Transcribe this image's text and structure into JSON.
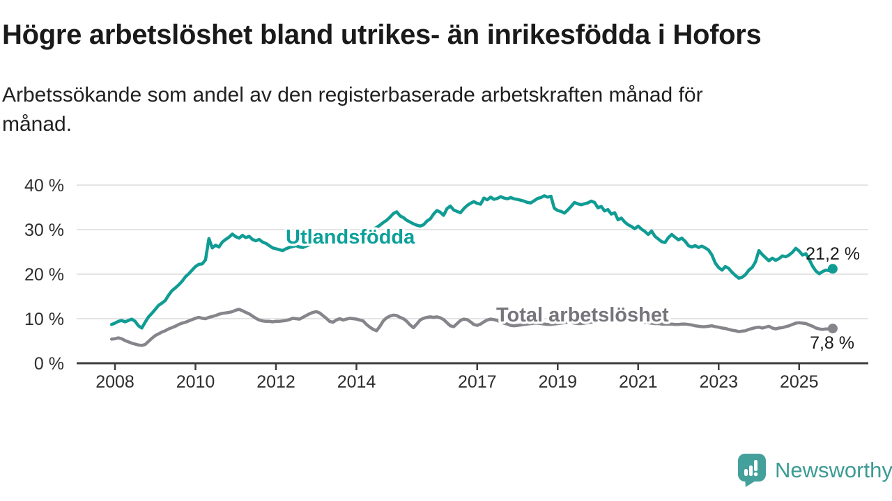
{
  "header": {
    "title": "Högre arbetslöshet bland utrikes- än inrikesfödda i Hofors",
    "subtitle_lines": [
      "Arbetssökande som andel av den registerbaserade arbetskraften månad för",
      "månad."
    ]
  },
  "chart_data": {
    "type": "line",
    "title": "Högre arbetslöshet bland utrikes- än inrikesfödda i Hofors",
    "subtitle": "Arbetssökande som andel av den registerbaserade arbetskraften månad för månad.",
    "grid": "horizontal-only",
    "legend_position": "inline-labels",
    "x_axis": {
      "range_years": [
        2007.75,
        2026.75
      ],
      "ticks": [
        {
          "year": 2008,
          "label": "2008"
        },
        {
          "year": 2010,
          "label": "2010"
        },
        {
          "year": 2012,
          "label": "2012"
        },
        {
          "year": 2014,
          "label": "2014"
        },
        {
          "year": 2017,
          "label": "2017"
        },
        {
          "year": 2019,
          "label": "2019"
        },
        {
          "year": 2021,
          "label": "2021"
        },
        {
          "year": 2023,
          "label": "2023"
        },
        {
          "year": 2025,
          "label": "2025"
        }
      ]
    },
    "y_axis": {
      "unit": "%",
      "range": [
        0,
        42
      ],
      "ticks": [
        {
          "value": 0,
          "label": "0 %"
        },
        {
          "value": 10,
          "label": "10 %"
        },
        {
          "value": 20,
          "label": "20 %"
        },
        {
          "value": 30,
          "label": "30 %"
        },
        {
          "value": 40,
          "label": "40 %"
        }
      ]
    },
    "series": [
      {
        "id": "utlandsfodda",
        "label": "Utlandsfödda",
        "color": "#109c94",
        "label_color": "#0ca09a",
        "end_value": 21.2,
        "end_label": "21,2 %",
        "start_year": 2007.9167,
        "step_years": 0.083333,
        "values": [
          8.7,
          9.0,
          9.4,
          9.6,
          9.3,
          9.6,
          9.9,
          9.4,
          8.4,
          7.9,
          9.2,
          10.4,
          11.2,
          12.1,
          13.0,
          13.5,
          14.1,
          15.3,
          16.3,
          16.9,
          17.6,
          18.4,
          19.4,
          20.1,
          20.9,
          21.7,
          22.2,
          22.3,
          23.2,
          28.0,
          25.9,
          26.5,
          26.1,
          27.2,
          27.8,
          28.3,
          29.0,
          28.4,
          28.1,
          28.7,
          28.2,
          28.5,
          27.8,
          27.5,
          27.8,
          27.2,
          26.9,
          26.4,
          25.9,
          25.7,
          25.5,
          25.3,
          25.7,
          26.0,
          26.2,
          26.4,
          26.1,
          26.0,
          26.3,
          26.6,
          26.8,
          27.0,
          26.8,
          27.1,
          27.3,
          27.1,
          27.4,
          27.2,
          27.6,
          27.9,
          28.1,
          28.0,
          28.2,
          28.0,
          28.4,
          28.7,
          29.1,
          29.6,
          30.1,
          30.5,
          31.0,
          31.6,
          32.1,
          32.8,
          33.6,
          34.0,
          33.1,
          32.7,
          32.1,
          31.7,
          31.3,
          31.0,
          30.8,
          31.1,
          31.9,
          32.4,
          33.5,
          34.3,
          33.9,
          33.2,
          34.7,
          35.3,
          34.4,
          34.1,
          33.8,
          34.7,
          35.4,
          35.9,
          36.3,
          35.9,
          35.7,
          37.1,
          36.7,
          37.3,
          36.8,
          37.0,
          37.4,
          37.1,
          36.9,
          37.2,
          36.9,
          36.8,
          36.6,
          36.4,
          36.1,
          36.0,
          36.5,
          37.0,
          37.2,
          37.6,
          37.3,
          37.5,
          34.8,
          34.3,
          34.1,
          33.7,
          34.4,
          35.2,
          36.1,
          35.8,
          35.6,
          35.8,
          36.0,
          36.4,
          36.1,
          34.9,
          35.2,
          34.2,
          34.5,
          33.5,
          33.8,
          32.2,
          32.6,
          31.7,
          31.1,
          30.7,
          30.2,
          30.8,
          30.1,
          29.6,
          28.9,
          29.7,
          28.5,
          27.9,
          27.3,
          27.1,
          28.2,
          28.9,
          28.3,
          27.7,
          28.1,
          27.4,
          26.4,
          26.1,
          26.4,
          26.0,
          26.3,
          25.9,
          25.4,
          24.3,
          22.5,
          21.5,
          20.9,
          21.7,
          21.3,
          20.4,
          19.7,
          19.1,
          19.3,
          19.9,
          20.9,
          21.5,
          22.8,
          25.3,
          24.4,
          23.7,
          23.0,
          23.6,
          23.1,
          23.5,
          24.1,
          23.9,
          24.3,
          24.9,
          25.8,
          25.2,
          24.3,
          24.6,
          23.3,
          21.8,
          20.7,
          20.1,
          20.6,
          20.9,
          20.8,
          21.2
        ]
      },
      {
        "id": "total",
        "label": "Total arbetslöshet",
        "color": "#85858b",
        "label_color": "#75757b",
        "end_value": 7.8,
        "end_label": "7,8 %",
        "start_year": 2007.9167,
        "step_years": 0.083333,
        "values": [
          5.4,
          5.5,
          5.7,
          5.5,
          5.1,
          4.8,
          4.5,
          4.3,
          4.1,
          4.0,
          4.2,
          4.9,
          5.6,
          6.2,
          6.6,
          7.0,
          7.3,
          7.7,
          8.0,
          8.3,
          8.7,
          9.0,
          9.2,
          9.5,
          9.8,
          10.1,
          10.3,
          10.1,
          10.0,
          10.3,
          10.5,
          10.7,
          11.0,
          11.2,
          11.3,
          11.4,
          11.6,
          11.9,
          12.1,
          11.8,
          11.4,
          11.1,
          10.6,
          10.1,
          9.7,
          9.5,
          9.4,
          9.4,
          9.3,
          9.4,
          9.4,
          9.5,
          9.6,
          9.8,
          10.1,
          10.0,
          9.9,
          10.3,
          10.7,
          11.1,
          11.4,
          11.6,
          11.3,
          10.7,
          10.1,
          9.4,
          9.2,
          9.7,
          10.0,
          9.7,
          9.9,
          10.1,
          10.0,
          9.9,
          9.7,
          9.5,
          8.7,
          8.1,
          7.6,
          7.3,
          8.3,
          9.5,
          10.2,
          10.6,
          10.8,
          10.7,
          10.3,
          10.0,
          9.4,
          8.6,
          8.0,
          8.8,
          9.7,
          10.1,
          10.3,
          10.4,
          10.3,
          10.4,
          10.2,
          9.8,
          9.1,
          8.4,
          8.2,
          8.9,
          9.6,
          9.9,
          9.8,
          9.3,
          8.7,
          8.5,
          8.8,
          9.3,
          9.7,
          9.9,
          9.8,
          9.6,
          9.3,
          9.0,
          8.8,
          8.5,
          8.4,
          8.5,
          8.6,
          8.7,
          8.8,
          8.9,
          9.0,
          9.0,
          8.9,
          8.8,
          8.7,
          8.7,
          8.8,
          8.9,
          9.0,
          9.1,
          9.2,
          9.2,
          9.0,
          8.9,
          8.9,
          9.0,
          9.1,
          9.2,
          9.2,
          9.3,
          9.4,
          9.6,
          9.8,
          9.9,
          10.0,
          10.0,
          9.9,
          9.8,
          9.7,
          9.6,
          9.5,
          9.4,
          9.3,
          9.2,
          9.1,
          9.0,
          8.9,
          8.9,
          8.8,
          8.8,
          8.8,
          8.8,
          8.7,
          8.7,
          8.8,
          8.8,
          8.7,
          8.6,
          8.4,
          8.3,
          8.2,
          8.2,
          8.3,
          8.4,
          8.2,
          8.1,
          7.9,
          7.8,
          7.6,
          7.4,
          7.3,
          7.1,
          7.2,
          7.3,
          7.6,
          7.8,
          8.0,
          8.1,
          7.9,
          8.1,
          8.3,
          7.9,
          7.7,
          7.9,
          8.0,
          8.2,
          8.4,
          8.7,
          9.0,
          9.1,
          9.0,
          8.9,
          8.6,
          8.3,
          7.9,
          7.7,
          7.6,
          7.7,
          7.7,
          7.8
        ]
      }
    ],
    "style": {
      "gridline_color": "#dcdcdc",
      "axis_color": "#3d3d3d",
      "tick_label_color": "#2e2e2e",
      "end_label_color": "#1b1b1b"
    }
  },
  "branding": {
    "name": "Newsworthy",
    "icon": "speech-bubble-bar-chart",
    "icon_color": "#44a09b",
    "wordmark_color": "#3c9b94"
  }
}
